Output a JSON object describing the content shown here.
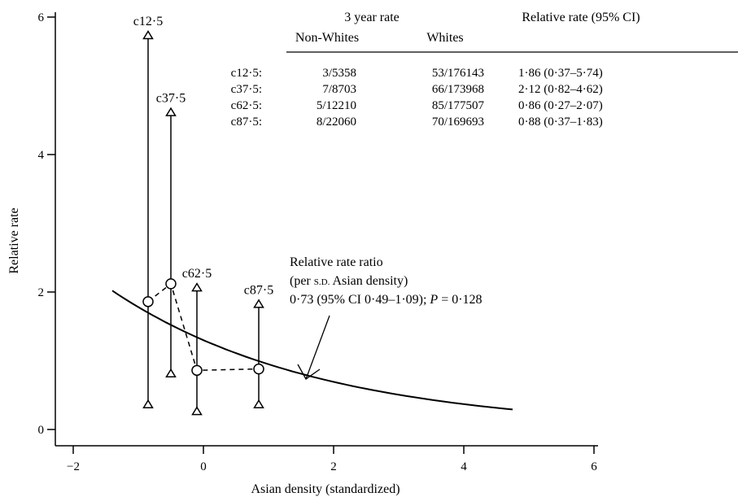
{
  "chart_data": {
    "type": "scatter",
    "xlabel": "Asian density (standardized)",
    "ylabel": "Relative rate",
    "xlim": [
      -2.5,
      6.5
    ],
    "ylim": [
      0,
      6
    ],
    "xticks": [
      -2,
      0,
      2,
      4,
      6
    ],
    "yticks": [
      0,
      2,
      4,
      6
    ],
    "xtick_labels": [
      "−2",
      "0",
      "2",
      "4",
      "6"
    ],
    "ytick_labels": [
      "0",
      "2",
      "4",
      "6"
    ],
    "grid": false,
    "points": [
      {
        "label": "c12·5",
        "x": -0.85,
        "y": 1.86,
        "lower": 0.37,
        "upper": 5.74
      },
      {
        "label": "c37·5",
        "x": -0.5,
        "y": 2.12,
        "lower": 0.82,
        "upper": 4.62
      },
      {
        "label": "c62·5",
        "x": -0.1,
        "y": 0.86,
        "lower": 0.27,
        "upper": 2.07
      },
      {
        "label": "c87·5",
        "x": 0.85,
        "y": 0.88,
        "lower": 0.37,
        "upper": 1.83
      }
    ],
    "fitted_curve": {
      "x0": 0,
      "y0": 1.3,
      "ratio": 0.73,
      "x_range": [
        -1.4,
        4.75
      ]
    },
    "annotation": {
      "line1": "Relative rate ratio",
      "line2_pre": "(per ",
      "line2_sd": "S.D.",
      "line2_post": " Asian density)",
      "line3_pre": "0·73 (95% CI 0·49–1·09); ",
      "line3_p": "P",
      "line3_post": " = 0·128"
    },
    "table": {
      "header_group": "3 year rate",
      "header_rr": "Relative rate (95% CI)",
      "col_nonwhites": "Non-Whites",
      "col_whites": "Whites",
      "rows": [
        {
          "label": "c12·5:",
          "nonwhites": "3/5358",
          "whites": "53/176143",
          "rr": "1·86 (0·37–5·74)"
        },
        {
          "label": "c37·5:",
          "nonwhites": "7/8703",
          "whites": "66/173968",
          "rr": "2·12 (0·82–4·62)"
        },
        {
          "label": "c62·5:",
          "nonwhites": "5/12210",
          "whites": "85/177507",
          "rr": "0·86 (0·27–2·07)"
        },
        {
          "label": "c87·5:",
          "nonwhites": "8/22060",
          "whites": "70/169693",
          "rr": "0·88 (0·37–1·83)"
        }
      ]
    }
  }
}
